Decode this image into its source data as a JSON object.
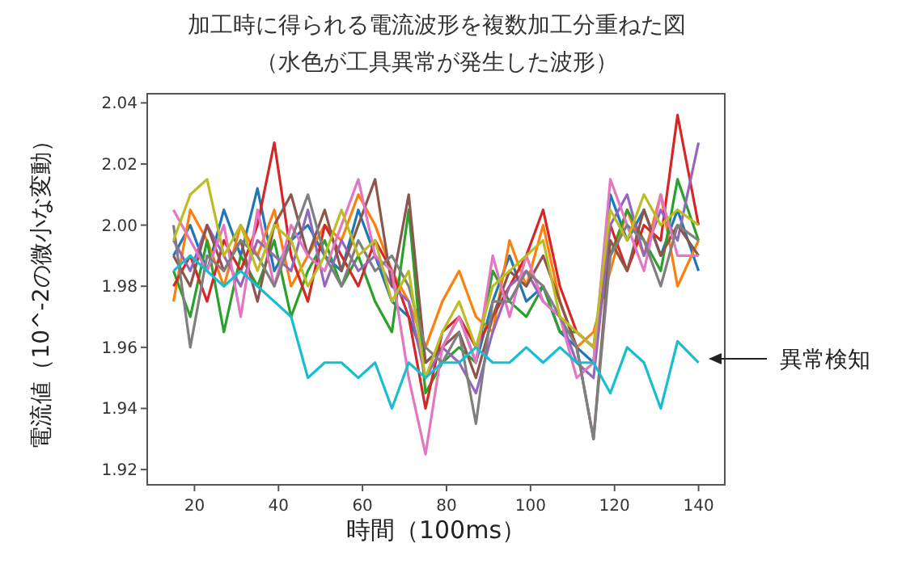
{
  "chart_data": {
    "type": "line",
    "title": "加工時に得られる電流波形を複数加工分重ねた図",
    "subtitle": "（水色が工具異常が発生した波形）",
    "xlabel": "時間（100ms）",
    "ylabel": "電流値（10^-2の微小な変動）",
    "annotations": [
      "異常検知"
    ],
    "x": [
      15,
      19,
      23,
      27,
      31,
      35,
      39,
      43,
      47,
      51,
      55,
      59,
      63,
      67,
      71,
      75,
      79,
      83,
      87,
      91,
      95,
      99,
      103,
      107,
      111,
      115,
      119,
      123,
      127,
      131,
      135,
      140
    ],
    "xlim": [
      8.75,
      146.25
    ],
    "ylim": [
      1.915,
      2.043
    ],
    "xticks": [
      20,
      40,
      60,
      80,
      100,
      120,
      140
    ],
    "yticks": [
      {
        "value": 1.92,
        "label": "1.92"
      },
      {
        "value": 1.94,
        "label": "1.94"
      },
      {
        "value": 1.96,
        "label": "1.96"
      },
      {
        "value": 1.98,
        "label": "1.98"
      },
      {
        "value": 2.0,
        "label": "2.00"
      },
      {
        "value": 2.02,
        "label": "2.02"
      },
      {
        "value": 2.04,
        "label": "2.04"
      }
    ],
    "series": [
      {
        "color": "#1f77b4",
        "values": [
          1.99,
          2.0,
          1.985,
          2.005,
          1.99,
          2.012,
          1.985,
          1.995,
          2.0,
          1.99,
          1.985,
          2.005,
          1.99,
          1.975,
          1.97,
          1.955,
          1.96,
          1.97,
          1.955,
          1.975,
          1.99,
          1.975,
          1.98,
          1.965,
          1.96,
          1.955,
          2.01,
          1.995,
          2.005,
          1.99,
          2.005,
          1.985
        ]
      },
      {
        "color": "#ff7f0e",
        "values": [
          1.975,
          2.005,
          1.995,
          1.98,
          2.0,
          1.99,
          2.005,
          1.98,
          1.99,
          2.0,
          1.995,
          2.01,
          2.0,
          1.985,
          1.975,
          1.96,
          1.975,
          1.985,
          1.97,
          1.965,
          1.995,
          1.98,
          2.0,
          1.975,
          1.96,
          1.965,
          1.985,
          2.005,
          1.99,
          2.01,
          1.98,
          1.995
        ]
      },
      {
        "color": "#2ca02c",
        "values": [
          1.985,
          1.97,
          1.995,
          1.965,
          1.99,
          1.98,
          1.995,
          1.97,
          1.985,
          1.995,
          1.98,
          1.99,
          1.975,
          1.965,
          2.005,
          1.945,
          1.955,
          1.96,
          1.955,
          1.985,
          1.975,
          1.97,
          1.98,
          1.965,
          1.965,
          1.96,
          1.99,
          2.005,
          1.995,
          1.985,
          2.015,
          1.995
        ]
      },
      {
        "color": "#d62728",
        "values": [
          1.98,
          1.99,
          1.975,
          1.995,
          1.985,
          2.0,
          2.027,
          1.99,
          1.975,
          2.0,
          1.99,
          1.98,
          1.995,
          1.985,
          1.97,
          1.94,
          1.965,
          1.97,
          1.96,
          1.97,
          1.98,
          1.99,
          2.005,
          1.98,
          1.965,
          1.96,
          2.0,
          1.985,
          2.0,
          1.995,
          2.036,
          2.0
        ]
      },
      {
        "color": "#9467bd",
        "values": [
          1.995,
          1.985,
          2.0,
          1.99,
          1.98,
          1.995,
          1.99,
          1.985,
          2.005,
          1.98,
          1.995,
          1.985,
          1.99,
          1.98,
          1.975,
          1.95,
          1.96,
          1.955,
          1.945,
          1.965,
          1.98,
          1.985,
          1.975,
          1.97,
          1.955,
          1.95,
          2.0,
          2.01,
          1.99,
          2.005,
          1.995,
          2.027
        ]
      },
      {
        "color": "#8c564b",
        "values": [
          1.99,
          1.98,
          2.0,
          1.985,
          1.995,
          1.975,
          2.0,
          2.01,
          1.99,
          2.005,
          1.985,
          2.0,
          2.015,
          1.98,
          2.01,
          1.955,
          1.96,
          1.965,
          1.95,
          1.97,
          1.985,
          1.98,
          1.99,
          1.975,
          1.96,
          1.93,
          1.995,
          1.985,
          2.005,
          1.99,
          2.0,
          1.99
        ]
      },
      {
        "color": "#e377c2",
        "values": [
          2.005,
          1.995,
          1.985,
          2.0,
          1.97,
          2.005,
          1.98,
          2.0,
          1.99,
          1.985,
          2.0,
          2.015,
          1.99,
          1.985,
          1.95,
          1.925,
          1.96,
          1.97,
          1.955,
          1.99,
          1.97,
          1.99,
          1.975,
          1.97,
          1.95,
          1.955,
          2.015,
          2.0,
          1.985,
          2.01,
          1.99,
          1.99
        ]
      },
      {
        "color": "#7f7f7f",
        "values": [
          2.0,
          1.96,
          1.99,
          1.985,
          1.995,
          1.99,
          1.98,
          1.995,
          2.01,
          1.99,
          1.98,
          1.995,
          1.985,
          1.99,
          1.98,
          1.96,
          1.955,
          1.965,
          1.935,
          1.975,
          1.975,
          1.985,
          1.98,
          1.97,
          1.96,
          1.93,
          1.99,
          2.0,
          1.995,
          1.98,
          2.0,
          1.995
        ]
      },
      {
        "color": "#bcbd22",
        "values": [
          1.995,
          2.01,
          2.015,
          1.99,
          2.0,
          1.985,
          2.0,
          1.995,
          1.98,
          1.99,
          2.005,
          1.99,
          1.995,
          1.975,
          1.985,
          1.95,
          1.965,
          1.975,
          1.96,
          1.98,
          1.985,
          1.99,
          1.995,
          1.97,
          1.965,
          1.96,
          2.005,
          1.995,
          2.01,
          2.0,
          2.005,
          2.0
        ]
      },
      {
        "color": "#17becf",
        "values": [
          1.985,
          1.99,
          1.985,
          1.98,
          1.985,
          1.98,
          1.975,
          1.97,
          1.95,
          1.955,
          1.955,
          1.95,
          1.955,
          1.94,
          1.955,
          1.95,
          1.955,
          1.955,
          1.96,
          1.955,
          1.955,
          1.96,
          1.955,
          1.96,
          1.955,
          1.955,
          1.945,
          1.96,
          1.955,
          1.94,
          1.962,
          1.955
        ]
      }
    ]
  }
}
